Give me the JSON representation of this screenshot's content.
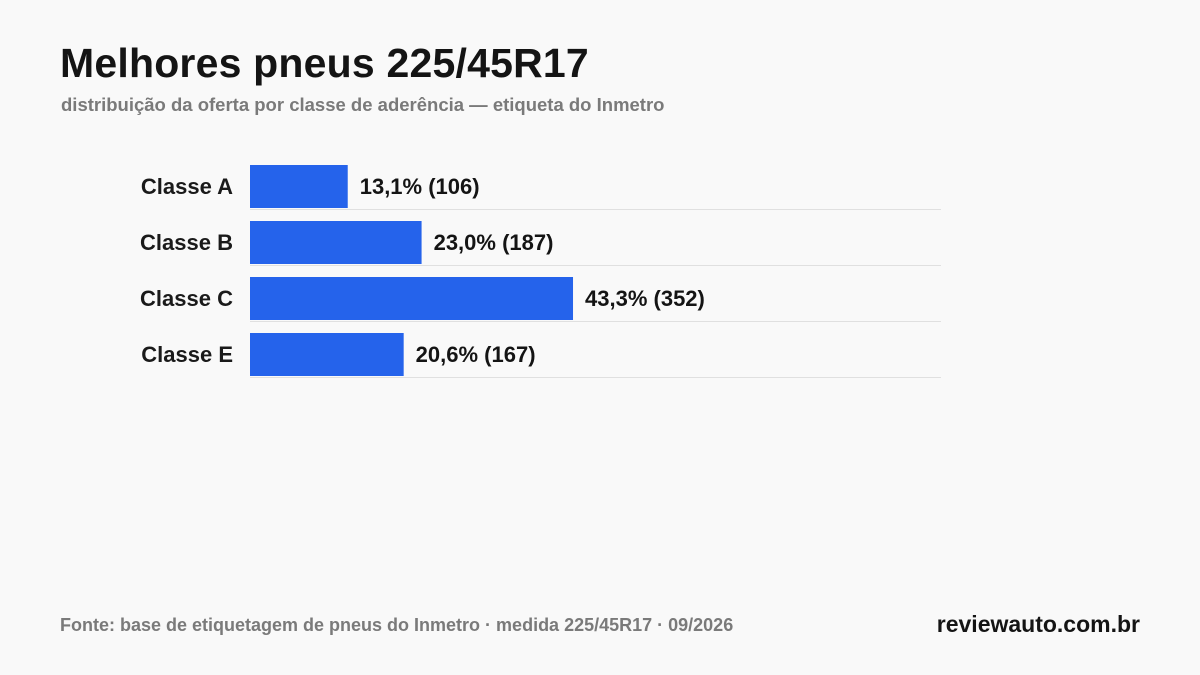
{
  "header": {
    "title": "Melhores pneus 225/45R17",
    "subtitle": "distribuição da oferta por classe de aderência — etiqueta do Inmetro"
  },
  "footer": {
    "source": "Fonte: base de etiquetagem de pneus do Inmetro · medida 225/45R17 · 09/2026",
    "brand": "reviewauto.com.br"
  },
  "colors": {
    "bar": "#2563eb",
    "divider": "#e0e0e0",
    "text": "#141414",
    "muted": "#7a7a7a",
    "background": "#f9f9f9"
  },
  "chart_data": {
    "type": "bar",
    "orientation": "horizontal",
    "title": "",
    "xlabel": "",
    "ylabel": "",
    "categories": [
      "Classe A",
      "Classe B",
      "Classe C",
      "Classe E"
    ],
    "values": [
      13.1,
      23.0,
      43.3,
      20.6
    ],
    "counts": [
      106,
      187,
      352,
      167
    ],
    "value_labels": [
      "13,1%  (106)",
      "23,0%  (187)",
      "43,3%  (352)",
      "20,6%  (167)"
    ],
    "unit": "%",
    "xlim": [
      0,
      100
    ],
    "grid": false,
    "legend": "none"
  }
}
